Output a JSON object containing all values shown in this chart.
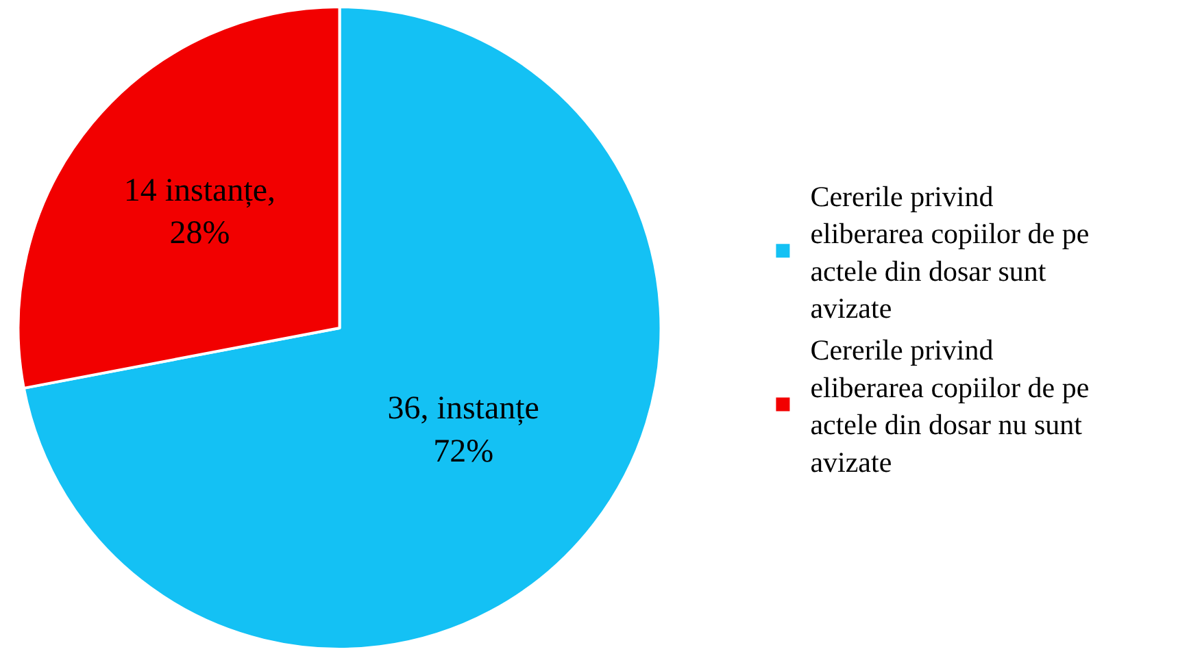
{
  "chart_data": {
    "type": "pie",
    "categories": [
      "Cererile privind eliberarea copiilor de pe actele din dosar sunt avizate",
      "Cererile privind eliberarea copiilor de pe actele din dosar nu sunt avizate"
    ],
    "values": [
      36,
      14
    ],
    "colors": [
      "#14c1f4",
      "#f20000"
    ],
    "value_labels": [
      "36, instanțe\n72%",
      "14 instanțe,\n28%"
    ],
    "legend": "right"
  }
}
